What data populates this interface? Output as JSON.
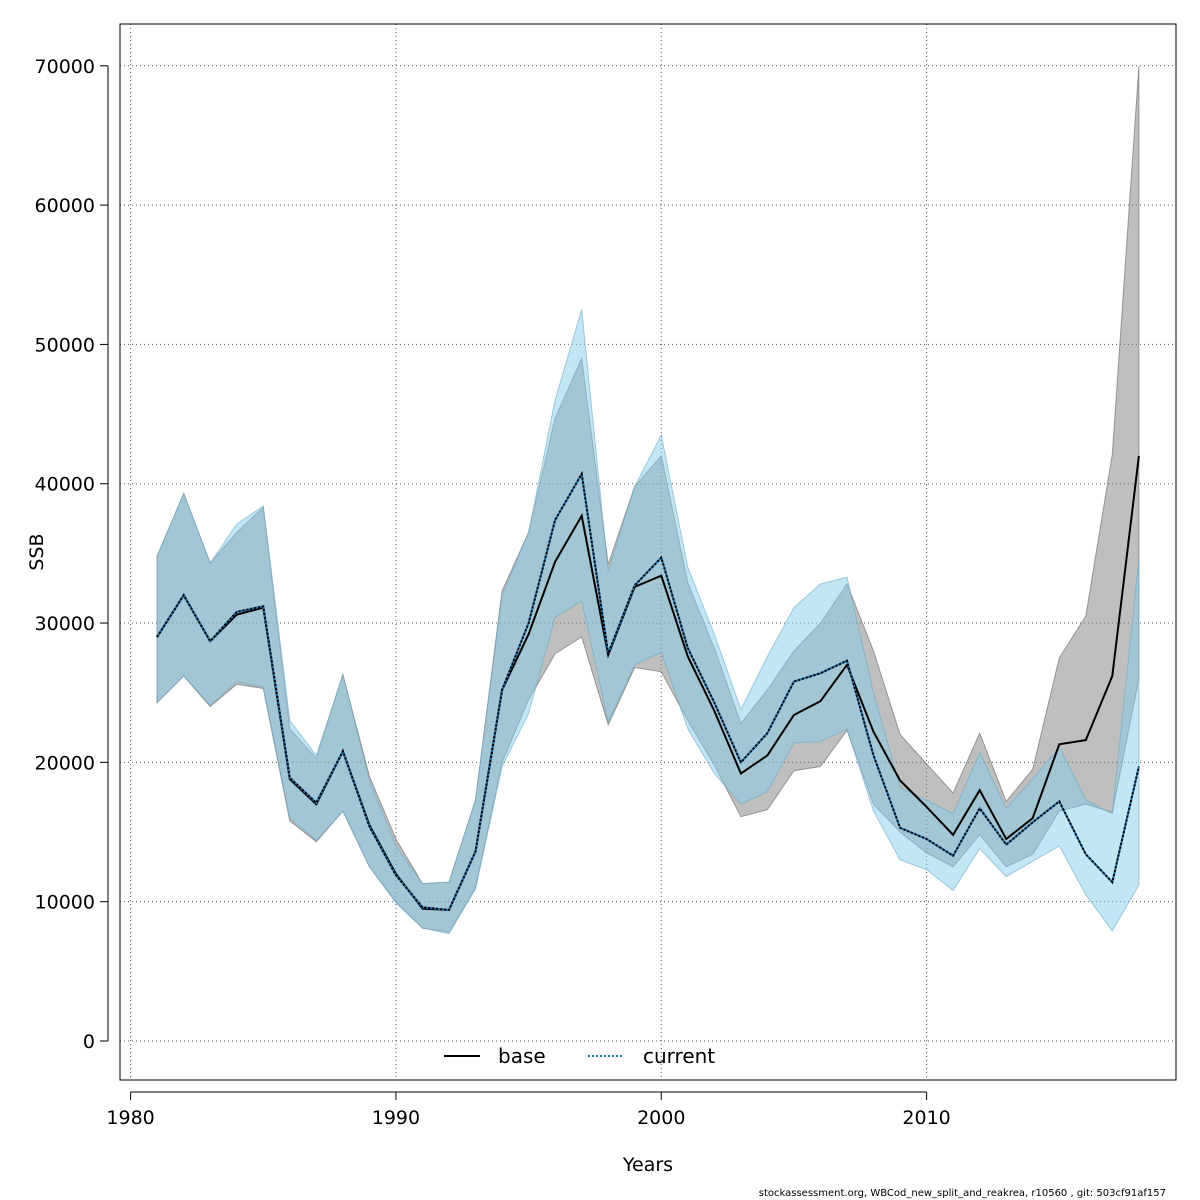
{
  "chart_data": {
    "type": "line",
    "xlabel": "Years",
    "ylabel": "SSB",
    "xlim": [
      1979.6,
      2019.4
    ],
    "ylim": [
      -2800,
      73000
    ],
    "x_ticks": [
      1980,
      1990,
      2000,
      2010
    ],
    "y_ticks": [
      0,
      10000,
      20000,
      30000,
      40000,
      50000,
      60000,
      70000
    ],
    "x_tick_labels": [
      "1980",
      "1990",
      "2000",
      "2010"
    ],
    "y_tick_labels": [
      "0",
      "10000",
      "20000",
      "30000",
      "40000",
      "50000",
      "60000",
      "70000"
    ],
    "grid": true,
    "legend_position": "bottom-center",
    "x": [
      1981,
      1982,
      1983,
      1984,
      1985,
      1986,
      1987,
      1988,
      1989,
      1990,
      1991,
      1992,
      1993,
      1994,
      1995,
      1996,
      1997,
      1998,
      1999,
      2000,
      2001,
      2002,
      2003,
      2004,
      2005,
      2006,
      2007,
      2008,
      2009,
      2010,
      2011,
      2012,
      2013,
      2014,
      2015,
      2016,
      2017,
      2018
    ],
    "series": [
      {
        "name": "base",
        "line_style": "solid",
        "line_color": "#000000",
        "band_color": "#808080",
        "values": [
          29000,
          32000,
          28700,
          30600,
          31100,
          18800,
          17000,
          20800,
          15500,
          12000,
          9500,
          9400,
          13600,
          25200,
          29200,
          34400,
          37700,
          27700,
          32600,
          33400,
          27600,
          23700,
          19200,
          20500,
          23400,
          24400,
          27000,
          22200,
          18700,
          16800,
          14800,
          18000,
          14500,
          16000,
          21300,
          21600,
          26200,
          42000
        ],
        "lower": [
          24300,
          26200,
          24000,
          25600,
          25300,
          15800,
          14300,
          16500,
          12500,
          10000,
          8100,
          7800,
          11000,
          20000,
          24500,
          27800,
          29000,
          22700,
          26800,
          26500,
          23000,
          19800,
          16100,
          16600,
          19400,
          19700,
          22300,
          17000,
          15000,
          13500,
          12500,
          14800,
          12500,
          13400,
          16500,
          17000,
          16400,
          26000
        ],
        "upper": [
          34800,
          39300,
          34300,
          36500,
          38300,
          22400,
          20300,
          26300,
          19000,
          14500,
          11300,
          11400,
          17300,
          32300,
          36500,
          44700,
          49000,
          34200,
          39800,
          42000,
          32900,
          28200,
          22800,
          25200,
          28000,
          30000,
          32800,
          28000,
          22000,
          19900,
          17800,
          22100,
          17200,
          19500,
          27500,
          30500,
          42100,
          70000
        ]
      },
      {
        "name": "current",
        "line_style": "dotted",
        "line_color": "#1f77b4",
        "band_color": "#87ceeb",
        "values": [
          29000,
          32000,
          28700,
          30800,
          31200,
          18900,
          17100,
          20800,
          15400,
          11900,
          9600,
          9400,
          13600,
          25200,
          30000,
          37400,
          40700,
          27800,
          32700,
          34700,
          28200,
          24300,
          20000,
          22100,
          25800,
          26400,
          27300,
          20500,
          15300,
          14500,
          13300,
          16700,
          14100,
          15700,
          17200,
          13400,
          11400,
          19700
        ],
        "lower": [
          24300,
          26200,
          24100,
          25800,
          25400,
          16000,
          14400,
          16500,
          12500,
          9900,
          8100,
          7700,
          10900,
          19700,
          23500,
          30400,
          31600,
          22900,
          27000,
          27900,
          22400,
          19200,
          17000,
          17900,
          21400,
          21500,
          22400,
          16500,
          13000,
          12300,
          10800,
          13800,
          11800,
          12900,
          14000,
          10500,
          7900,
          11200
        ],
        "upper": [
          34800,
          39300,
          34300,
          37100,
          38400,
          23000,
          20500,
          26300,
          18700,
          14000,
          11300,
          11400,
          17300,
          32000,
          36500,
          46000,
          52500,
          33700,
          39800,
          43500,
          34000,
          29200,
          23800,
          27600,
          31100,
          32800,
          33300,
          25000,
          18200,
          17300,
          16300,
          20700,
          16700,
          18800,
          21100,
          17300,
          16300,
          34600
        ]
      }
    ]
  },
  "legend": {
    "base_label": "base",
    "current_label": "current"
  },
  "footer_text": "stockassessment.org, WBCod_new_split_and_reakrea, r10560 , git: 503cf91af157"
}
